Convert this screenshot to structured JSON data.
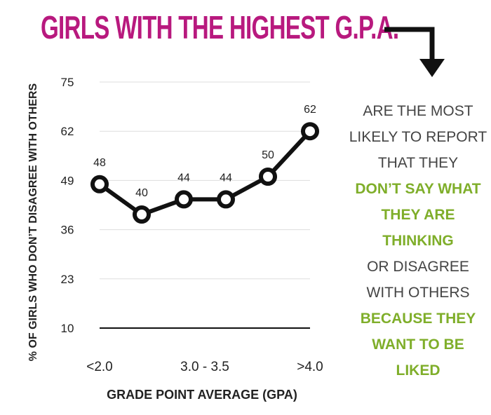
{
  "colors": {
    "title": "#b8197e",
    "highlight": "#7fae2a",
    "text": "#444444",
    "line": "#111111",
    "grid": "#dddddd"
  },
  "header": {
    "title": "GIRLS WITH THE HIGHEST G.P.A."
  },
  "sidebar": {
    "lines": [
      {
        "text": "ARE THE MOST",
        "style": "gray"
      },
      {
        "text": "LIKELY TO REPORT",
        "style": "gray"
      },
      {
        "text": "THAT THEY",
        "style": "gray"
      },
      {
        "text": "DON’T SAY WHAT",
        "style": "green"
      },
      {
        "text": "THEY ARE",
        "style": "green"
      },
      {
        "text": "THINKING",
        "style": "green"
      },
      {
        "text": "OR DISAGREE",
        "style": "gray"
      },
      {
        "text": "WITH OTHERS",
        "style": "gray"
      },
      {
        "text": "BECAUSE THEY",
        "style": "green"
      },
      {
        "text": "WANT TO BE",
        "style": "green"
      },
      {
        "text": "LIKED",
        "style": "green"
      }
    ]
  },
  "chart_data": {
    "type": "line",
    "title": "GIRLS WITH THE HIGHEST G.P.A.",
    "xlabel": "GRADE POINT AVERAGE (GPA)",
    "ylabel": "% OF GIRLS WHO DON’T DISAGREE WITH OTHERS",
    "ylim": [
      10,
      75
    ],
    "yticks": [
      75,
      62,
      49,
      36,
      23,
      10
    ],
    "x_tick_labels": [
      "<2.0",
      "3.0 - 3.5",
      ">4.0"
    ],
    "x_tick_positions": [
      0,
      2.5,
      5
    ],
    "grid": true,
    "series": [
      {
        "name": "GPA",
        "values": [
          48,
          40,
          44,
          44,
          50,
          62
        ]
      }
    ]
  }
}
